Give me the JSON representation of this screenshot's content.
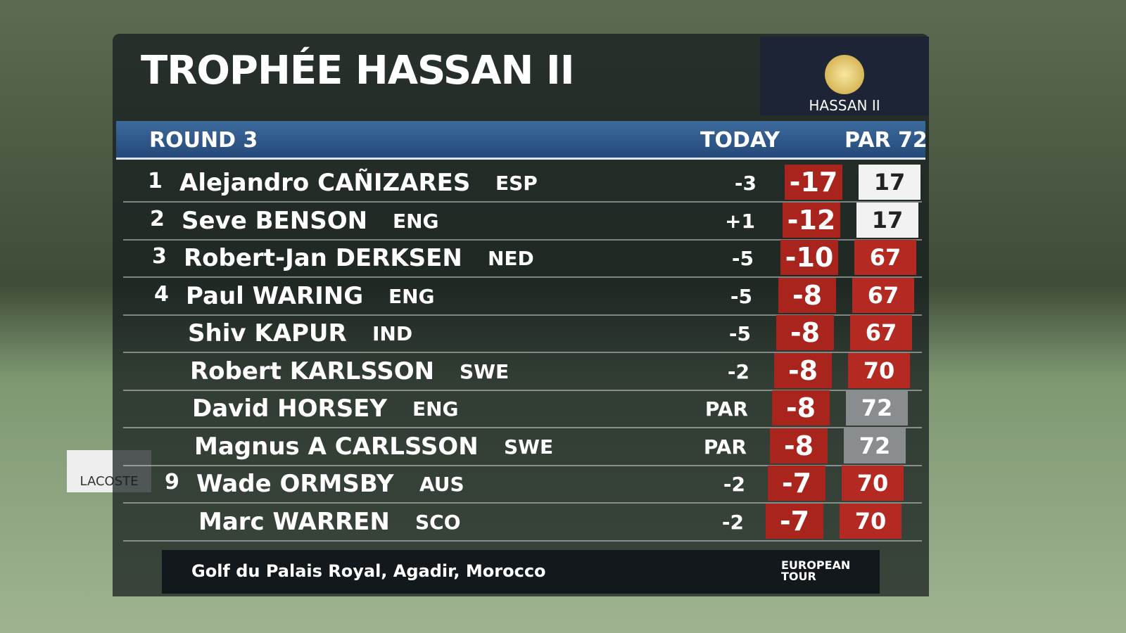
{
  "header": {
    "title": "TROPHÉE HASSAN II",
    "logo": "HASSAN II"
  },
  "subheader": {
    "round": "ROUND 3",
    "today": "TODAY",
    "par": "PAR 72"
  },
  "rows": [
    {
      "pos": "1",
      "name": "Alejandro CAÑIZARES",
      "country": "ESP",
      "today": "-3",
      "total": "-17",
      "thru": "17",
      "thru_color": "#f2f2f2"
    },
    {
      "pos": "2",
      "name": "Seve BENSON",
      "country": "ENG",
      "today": "+1",
      "total": "-12",
      "thru": "17",
      "thru_color": "#f2f2f2"
    },
    {
      "pos": "3",
      "name": "Robert-Jan DERKSEN",
      "country": "NED",
      "today": "-5",
      "total": "-10",
      "thru": "67",
      "thru_color": "#b42a22"
    },
    {
      "pos": "4",
      "name": "Paul WARING",
      "country": "ENG",
      "today": "-5",
      "total": "-8",
      "thru": "67",
      "thru_color": "#b42a22"
    },
    {
      "pos": null,
      "name": "Shiv KAPUR",
      "country": "IND",
      "today": "-5",
      "total": "-8",
      "thru": "67",
      "thru_color": "#b42a22"
    },
    {
      "pos": null,
      "name": "Robert KARLSSON",
      "country": "SWE",
      "today": "-2",
      "total": "-8",
      "thru": "70",
      "thru_color": "#b42a22"
    },
    {
      "pos": null,
      "name": "David HORSEY",
      "country": "ENG",
      "today": "PAR",
      "total": "-8",
      "thru": "72",
      "thru_color": "#8a8d8f"
    },
    {
      "pos": null,
      "name": "Magnus A CARLSSON",
      "country": "SWE",
      "today": "PAR",
      "total": "-8",
      "thru": "72",
      "thru_color": "#8a8d8f"
    },
    {
      "pos": "9",
      "name": "Wade ORMSBY",
      "country": "AUS",
      "today": "-2",
      "total": "-7",
      "thru": "70",
      "thru_color": "#b42a22"
    },
    {
      "pos": null,
      "name": "Marc WARREN",
      "country": "SCO",
      "today": "-2",
      "total": "-7",
      "thru": "70",
      "thru_color": "#b42a22"
    }
  ],
  "footer": {
    "venue": "Golf du Palais Royal, Agadir, Morocco",
    "tour": "EUROPEAN TOUR"
  },
  "background": {
    "sign": "LACOSTE"
  }
}
